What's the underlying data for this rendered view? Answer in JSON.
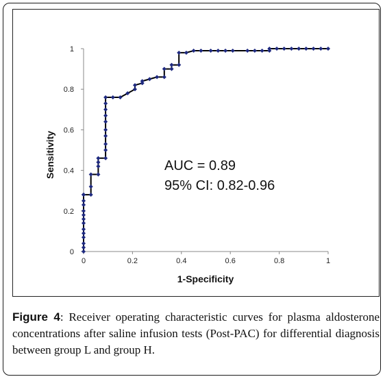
{
  "chart_data": {
    "type": "line",
    "xlabel": "1-Specificity",
    "ylabel": "Sensitivity",
    "xlim": [
      0,
      1
    ],
    "ylim": [
      0,
      1
    ],
    "x_ticks": [
      "0",
      "0.2",
      "0.4",
      "0.6",
      "0.8",
      "1"
    ],
    "y_ticks": [
      "0",
      "0.2",
      "0.4",
      "0.6",
      "0.8",
      "1"
    ],
    "grid": false,
    "line_color": "#000000",
    "marker_color": "#1f2a80",
    "annotations": [
      "AUC = 0.89",
      "95% CI: 0.82-0.96"
    ],
    "x": [
      0,
      0,
      0,
      0,
      0,
      0,
      0,
      0,
      0,
      0,
      0,
      0,
      0,
      0,
      0,
      0,
      0.03,
      0.03,
      0.03,
      0.06,
      0.06,
      0.06,
      0.06,
      0.09,
      0.09,
      0.09,
      0.09,
      0.09,
      0.09,
      0.09,
      0.09,
      0.09,
      0.09,
      0.12,
      0.15,
      0.18,
      0.21,
      0.21,
      0.24,
      0.24,
      0.27,
      0.3,
      0.33,
      0.33,
      0.36,
      0.36,
      0.39,
      0.39,
      0.42,
      0.45,
      0.48,
      0.52,
      0.55,
      0.58,
      0.61,
      0.67,
      0.7,
      0.73,
      0.76,
      0.76,
      0.79,
      0.82,
      0.85,
      0.88,
      0.91,
      0.94,
      0.97,
      1.0
    ],
    "y": [
      0,
      0.02,
      0.04,
      0.07,
      0.09,
      0.11,
      0.14,
      0.16,
      0.18,
      0.2,
      0.23,
      0.25,
      0.28,
      0.28,
      0.28,
      0.28,
      0.28,
      0.32,
      0.38,
      0.38,
      0.42,
      0.44,
      0.46,
      0.46,
      0.5,
      0.53,
      0.57,
      0.6,
      0.64,
      0.67,
      0.7,
      0.73,
      0.76,
      0.76,
      0.76,
      0.78,
      0.8,
      0.82,
      0.83,
      0.84,
      0.85,
      0.86,
      0.86,
      0.9,
      0.9,
      0.92,
      0.92,
      0.98,
      0.98,
      0.99,
      0.99,
      0.99,
      0.99,
      0.99,
      0.99,
      0.99,
      0.99,
      0.99,
      0.99,
      1.0,
      1.0,
      1.0,
      1.0,
      1.0,
      1.0,
      1.0,
      1.0,
      1.0
    ]
  },
  "caption": {
    "label": "Figure 4",
    "text": ": Receiver operating characteristic curves for plasma aldosterone concentrations after saline infusion tests (Post-PAC) for differential diagnosis between group L and group H."
  }
}
